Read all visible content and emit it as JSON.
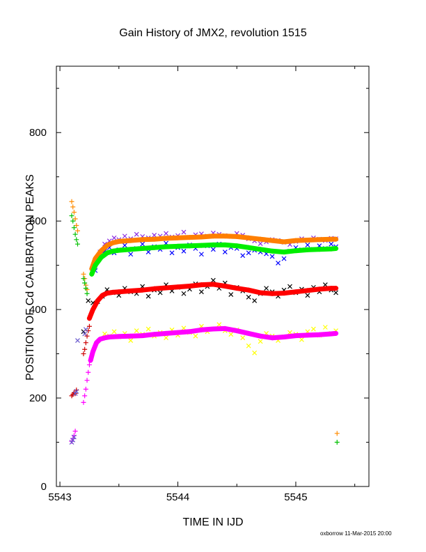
{
  "chart_data": {
    "type": "scatter",
    "title": "Gain History of JMX2, revolution 1515",
    "xlabel": "TIME IN IJD",
    "ylabel": "POSITION OF Cd CALIBRATION PEAKS",
    "xlim": [
      5542.97,
      5545.62
    ],
    "ylim": [
      0,
      950
    ],
    "xticks": [
      "5543",
      "5544",
      "5545"
    ],
    "yticks": [
      "0",
      "200",
      "400",
      "600",
      "800"
    ],
    "grid": false,
    "legend": "none",
    "footer": "oxborrow 11-Mar-2015 20:00",
    "series": [
      {
        "color": "#8a2be2",
        "marker": "x",
        "x": [
          5543.3,
          5543.34,
          5543.38,
          5543.42,
          5543.46,
          5543.5,
          5543.55,
          5543.6,
          5543.65,
          5543.7,
          5543.75,
          5543.8,
          5543.85,
          5543.9,
          5543.95,
          5544.0,
          5544.05,
          5544.1,
          5544.15,
          5544.2,
          5544.25,
          5544.3,
          5544.35,
          5544.4,
          5544.45,
          5544.5,
          5544.55,
          5544.6,
          5544.65,
          5544.7,
          5544.75,
          5544.8,
          5544.85,
          5544.9,
          5544.95,
          5545.0,
          5545.05,
          5545.1,
          5545.15,
          5545.2,
          5545.25,
          5545.3,
          5545.34
        ],
        "y": [
          500,
          530,
          548,
          555,
          562,
          558,
          566,
          560,
          570,
          565,
          562,
          568,
          566,
          572,
          564,
          567,
          575,
          563,
          569,
          571,
          566,
          573,
          570,
          567,
          565,
          572,
          568,
          560,
          555,
          549,
          553,
          558,
          556,
          552,
          547,
          554,
          560,
          557,
          562,
          559,
          556,
          561,
          560
        ]
      },
      {
        "color": "#0000ff",
        "marker": "x",
        "x": [
          5543.3,
          5543.34,
          5543.38,
          5543.42,
          5543.46,
          5543.5,
          5543.55,
          5543.6,
          5543.65,
          5543.7,
          5543.75,
          5543.8,
          5543.85,
          5543.9,
          5543.95,
          5544.0,
          5544.05,
          5544.1,
          5544.15,
          5544.2,
          5544.25,
          5544.3,
          5544.35,
          5544.4,
          5544.45,
          5544.5,
          5544.55,
          5544.6,
          5544.65,
          5544.7,
          5544.75,
          5544.8,
          5544.85,
          5544.9,
          5544.95,
          5545.0,
          5545.05,
          5545.1,
          5545.15,
          5545.2,
          5545.25,
          5545.3,
          5545.34
        ],
        "y": [
          488,
          518,
          532,
          540,
          528,
          535,
          545,
          525,
          538,
          548,
          530,
          542,
          536,
          550,
          528,
          540,
          532,
          546,
          538,
          525,
          544,
          536,
          548,
          530,
          540,
          538,
          522,
          528,
          534,
          530,
          526,
          520,
          505,
          515,
          532,
          540,
          535,
          546,
          536,
          544,
          538,
          548,
          542
        ]
      },
      {
        "color": "#000000",
        "marker": "x",
        "x": [
          5543.2,
          5543.24,
          5543.28,
          5543.32,
          5543.36,
          5543.4,
          5543.45,
          5543.5,
          5543.55,
          5543.6,
          5543.65,
          5543.7,
          5543.75,
          5543.8,
          5543.85,
          5543.9,
          5543.95,
          5544.0,
          5544.05,
          5544.1,
          5544.15,
          5544.2,
          5544.25,
          5544.3,
          5544.35,
          5544.4,
          5544.45,
          5544.5,
          5544.55,
          5544.6,
          5544.65,
          5544.7,
          5544.75,
          5544.8,
          5544.85,
          5544.9,
          5544.95,
          5545.0,
          5545.05,
          5545.1,
          5545.15,
          5545.2,
          5545.25,
          5545.3,
          5545.34
        ],
        "y": [
          350,
          420,
          415,
          418,
          430,
          445,
          438,
          432,
          448,
          440,
          436,
          452,
          430,
          444,
          438,
          456,
          442,
          450,
          436,
          446,
          458,
          440,
          452,
          466,
          448,
          460,
          434,
          450,
          442,
          428,
          420,
          436,
          448,
          440,
          430,
          444,
          452,
          438,
          446,
          432,
          450,
          440,
          456,
          444,
          438
        ]
      },
      {
        "color": "#ffff00",
        "marker": "x",
        "x": [
          5543.38,
          5543.42,
          5543.46,
          5543.5,
          5543.55,
          5543.6,
          5543.65,
          5543.7,
          5543.75,
          5543.8,
          5543.85,
          5543.9,
          5543.95,
          5544.0,
          5544.05,
          5544.1,
          5544.15,
          5544.2,
          5544.25,
          5544.3,
          5544.35,
          5544.4,
          5544.45,
          5544.5,
          5544.55,
          5544.6,
          5544.65,
          5544.7,
          5544.75,
          5544.8,
          5544.85,
          5544.9,
          5544.95,
          5545.0,
          5545.05,
          5545.1,
          5545.15,
          5545.2,
          5545.25,
          5545.3,
          5545.34
        ],
        "y": [
          345,
          340,
          350,
          338,
          346,
          330,
          352,
          344,
          356,
          340,
          348,
          336,
          354,
          342,
          358,
          348,
          340,
          362,
          350,
          356,
          366,
          352,
          344,
          354,
          336,
          318,
          302,
          328,
          346,
          340,
          330,
          338,
          348,
          344,
          332,
          350,
          356,
          342,
          360,
          346,
          352
        ]
      },
      {
        "color": "#ff8c00",
        "marker": "+",
        "x": [
          5543.1,
          5543.11,
          5543.12,
          5543.13,
          5543.14,
          5543.15,
          5543.2,
          5543.21,
          5543.22,
          5543.23,
          5545.35
        ],
        "y": [
          644,
          632,
          620,
          605,
          590,
          578,
          480,
          470,
          455,
          445,
          120
        ]
      },
      {
        "color": "#00c000",
        "marker": "+",
        "x": [
          5543.1,
          5543.11,
          5543.12,
          5543.13,
          5543.14,
          5543.15,
          5543.2,
          5543.21,
          5543.22,
          5543.23,
          5545.35
        ],
        "y": [
          612,
          600,
          585,
          570,
          558,
          548,
          470,
          460,
          448,
          436,
          100
        ]
      },
      {
        "color": "#cc0000",
        "marker": "+",
        "x": [
          5543.1,
          5543.11,
          5543.12,
          5543.13,
          5543.14,
          5543.2,
          5543.21,
          5543.22,
          5543.23,
          5543.24,
          5543.25
        ],
        "y": [
          205,
          208,
          212,
          210,
          218,
          300,
          310,
          325,
          340,
          352,
          362
        ]
      },
      {
        "color": "#ff00ff",
        "marker": "+",
        "x": [
          5543.1,
          5543.11,
          5543.12,
          5543.13,
          5543.2,
          5543.21,
          5543.22,
          5543.23,
          5543.24,
          5543.25
        ],
        "y": [
          102,
          108,
          115,
          125,
          190,
          205,
          220,
          240,
          258,
          275
        ]
      },
      {
        "color": "#6a5acd",
        "marker": "x",
        "x": [
          5543.1,
          5543.11,
          5543.12,
          5543.13,
          5543.14,
          5543.15,
          5543.21,
          5543.22
        ],
        "y": [
          100,
          105,
          112,
          210,
          215,
          330,
          345,
          355
        ]
      },
      {
        "color": "#ff7f00",
        "marker": "+",
        "line": true,
        "x": [
          5543.27,
          5543.3,
          5543.35,
          5543.4,
          5543.45,
          5543.5,
          5543.6,
          5543.7,
          5543.8,
          5543.9,
          5544.0,
          5544.1,
          5544.2,
          5544.3,
          5544.4,
          5544.5,
          5544.6,
          5544.7,
          5544.8,
          5544.9,
          5545.0,
          5545.1,
          5545.2,
          5545.3,
          5545.34
        ],
        "y": [
          492,
          515,
          533,
          545,
          551,
          554,
          556,
          558,
          559,
          561,
          562,
          563,
          564,
          566,
          566,
          565,
          562,
          559,
          556,
          553,
          556,
          557,
          558,
          559,
          559
        ]
      },
      {
        "color": "#00ee00",
        "marker": "+",
        "line": true,
        "x": [
          5543.27,
          5543.3,
          5543.35,
          5543.4,
          5543.45,
          5543.5,
          5543.6,
          5543.7,
          5543.8,
          5543.9,
          5544.0,
          5544.1,
          5544.2,
          5544.3,
          5544.4,
          5544.5,
          5544.6,
          5544.7,
          5544.8,
          5544.9,
          5545.0,
          5545.1,
          5545.2,
          5545.3,
          5545.34
        ],
        "y": [
          480,
          500,
          518,
          528,
          532,
          534,
          536,
          538,
          540,
          542,
          543,
          544,
          545,
          546,
          546,
          544,
          540,
          536,
          532,
          530,
          533,
          535,
          536,
          537,
          538
        ]
      },
      {
        "color": "#ff0000",
        "marker": "+",
        "line": true,
        "x": [
          5543.25,
          5543.28,
          5543.32,
          5543.36,
          5543.4,
          5543.45,
          5543.5,
          5543.6,
          5543.7,
          5543.8,
          5543.9,
          5544.0,
          5544.1,
          5544.2,
          5544.3,
          5544.4,
          5544.5,
          5544.6,
          5544.7,
          5544.8,
          5544.9,
          5545.0,
          5545.1,
          5545.2,
          5545.3,
          5545.34
        ],
        "y": [
          380,
          400,
          420,
          432,
          437,
          439,
          440,
          442,
          444,
          447,
          449,
          451,
          453,
          456,
          457,
          453,
          448,
          444,
          438,
          436,
          437,
          440,
          443,
          446,
          448,
          448
        ]
      },
      {
        "color": "#ff00ff",
        "marker": "+",
        "line": true,
        "x": [
          5543.26,
          5543.28,
          5543.31,
          5543.34,
          5543.38,
          5543.42,
          5543.5,
          5543.6,
          5543.7,
          5543.8,
          5543.9,
          5544.0,
          5544.1,
          5544.2,
          5544.3,
          5544.4,
          5544.5,
          5544.6,
          5544.7,
          5544.8,
          5544.9,
          5545.0,
          5545.1,
          5545.2,
          5545.3,
          5545.34
        ],
        "y": [
          285,
          305,
          325,
          333,
          336,
          338,
          339,
          340,
          341,
          344,
          346,
          348,
          350,
          354,
          356,
          357,
          352,
          346,
          340,
          336,
          338,
          341,
          342,
          343,
          345,
          346
        ]
      }
    ]
  }
}
